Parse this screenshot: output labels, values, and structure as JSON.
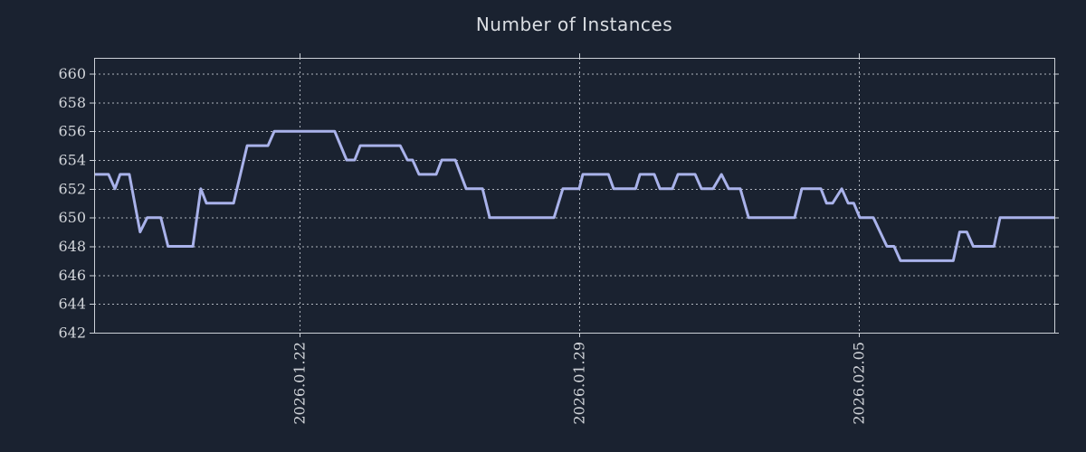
{
  "title": "Number of Instances",
  "colors": {
    "background": "#1a2230",
    "line": "#a9b2ea",
    "grid": "#c9ced6",
    "axis": "#ccd1d8",
    "tick_label": "#d2d5da",
    "title": "#dbdee3"
  },
  "chart_data": {
    "type": "line",
    "title": "Number of Instances",
    "x_unit": "days since 2026.01.22",
    "x_range": [
      -5.14,
      18.89
    ],
    "y_range": [
      642,
      661.1
    ],
    "y_ticks": [
      642,
      644,
      646,
      648,
      650,
      652,
      654,
      656,
      658,
      660
    ],
    "x_ticks": [
      {
        "label": "2026.01.22",
        "d": 0
      },
      {
        "label": "2026.01.29",
        "d": 7
      },
      {
        "label": "2026.02.05",
        "d": 14
      }
    ],
    "grid": "dotted",
    "legend": "none",
    "series": [
      {
        "name": "instances",
        "points": [
          [
            -5.14,
            653
          ],
          [
            -4.78,
            653
          ],
          [
            -4.62,
            652
          ],
          [
            -4.49,
            653
          ],
          [
            -4.26,
            653
          ],
          [
            -3.99,
            649
          ],
          [
            -3.81,
            650
          ],
          [
            -3.47,
            650
          ],
          [
            -3.29,
            648
          ],
          [
            -2.67,
            648
          ],
          [
            -2.47,
            652
          ],
          [
            -2.33,
            651
          ],
          [
            -1.65,
            651
          ],
          [
            -1.31,
            655
          ],
          [
            -0.79,
            655
          ],
          [
            -0.63,
            656
          ],
          [
            0.88,
            656
          ],
          [
            1.18,
            654
          ],
          [
            1.38,
            654
          ],
          [
            1.52,
            655
          ],
          [
            2.52,
            655
          ],
          [
            2.7,
            654
          ],
          [
            2.83,
            654
          ],
          [
            2.99,
            653
          ],
          [
            3.42,
            653
          ],
          [
            3.56,
            654
          ],
          [
            3.9,
            654
          ],
          [
            4.17,
            652
          ],
          [
            4.58,
            652
          ],
          [
            4.76,
            650
          ],
          [
            6.37,
            650
          ],
          [
            6.59,
            652
          ],
          [
            7.0,
            652
          ],
          [
            7.09,
            653
          ],
          [
            7.73,
            653
          ],
          [
            7.86,
            652
          ],
          [
            8.41,
            652
          ],
          [
            8.52,
            653
          ],
          [
            8.88,
            653
          ],
          [
            9.02,
            652
          ],
          [
            9.33,
            652
          ],
          [
            9.47,
            653
          ],
          [
            9.9,
            653
          ],
          [
            10.06,
            652
          ],
          [
            10.35,
            652
          ],
          [
            10.56,
            653
          ],
          [
            10.74,
            652
          ],
          [
            11.03,
            652
          ],
          [
            11.24,
            650
          ],
          [
            12.39,
            650
          ],
          [
            12.57,
            652
          ],
          [
            13.05,
            652
          ],
          [
            13.19,
            651
          ],
          [
            13.34,
            651
          ],
          [
            13.57,
            652
          ],
          [
            13.73,
            651
          ],
          [
            13.87,
            651
          ],
          [
            14.02,
            650
          ],
          [
            14.36,
            650
          ],
          [
            14.7,
            648
          ],
          [
            14.88,
            648
          ],
          [
            15.04,
            647
          ],
          [
            16.36,
            647
          ],
          [
            16.52,
            649
          ],
          [
            16.7,
            649
          ],
          [
            16.86,
            648
          ],
          [
            17.38,
            648
          ],
          [
            17.53,
            650
          ],
          [
            18.89,
            650
          ]
        ]
      }
    ]
  }
}
